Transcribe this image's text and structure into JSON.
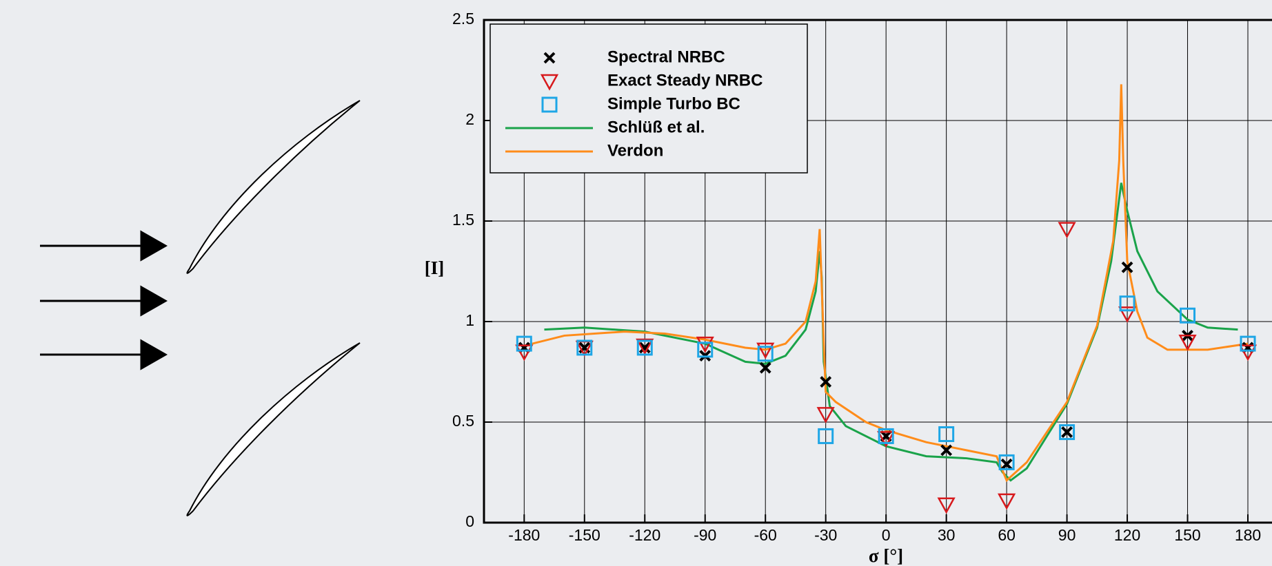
{
  "chart_data": {
    "type": "scatter",
    "xlabel": "σ [°]",
    "ylabel": "[I]",
    "xlim": [
      -200,
      192
    ],
    "ylim": [
      0,
      2.5
    ],
    "xticks": [
      -180,
      -150,
      -120,
      -90,
      -60,
      -30,
      0,
      30,
      60,
      90,
      120,
      150,
      180
    ],
    "yticks": [
      0,
      0.5,
      1,
      1.5,
      2,
      2.5
    ],
    "grid": true,
    "legend": "upper left",
    "series": [
      {
        "name": "Spectral NRBC",
        "color": "#000000",
        "marker": "x",
        "x": [
          -180,
          -150,
          -120,
          -90,
          -60,
          -30,
          0,
          30,
          60,
          90,
          120,
          150,
          180
        ],
        "values": [
          0.87,
          0.87,
          0.87,
          0.83,
          0.77,
          0.7,
          0.43,
          0.36,
          0.29,
          0.45,
          1.27,
          0.93,
          0.87
        ]
      },
      {
        "name": "Exact Steady NRBC",
        "color": "#d7191c",
        "marker": "triangle",
        "x": [
          -180,
          -150,
          -120,
          -90,
          -60,
          -30,
          0,
          30,
          60,
          90,
          120,
          150,
          180
        ],
        "values": [
          0.85,
          0.87,
          0.88,
          0.89,
          0.86,
          0.54,
          0.42,
          0.09,
          0.11,
          1.46,
          1.04,
          0.9,
          0.85
        ]
      },
      {
        "name": "Simple Turbo BC",
        "color": "#1ea6e6",
        "marker": "square",
        "x": [
          -180,
          -150,
          -120,
          -90,
          -60,
          -30,
          0,
          30,
          60,
          90,
          120,
          150,
          180
        ],
        "values": [
          0.89,
          0.87,
          0.87,
          0.86,
          0.84,
          0.43,
          0.43,
          0.44,
          0.3,
          0.45,
          1.09,
          1.03,
          0.89
        ]
      },
      {
        "name": "Schlüß et al.",
        "color": "#1aa34a",
        "marker": "line",
        "x": [
          -170,
          -150,
          -120,
          -90,
          -70,
          -60,
          -50,
          -40,
          -35,
          -33,
          -32,
          -31,
          -28,
          -20,
          0,
          20,
          40,
          55,
          58,
          62,
          70,
          90,
          105,
          112,
          117,
          120,
          125,
          135,
          150,
          160,
          175
        ],
        "values": [
          0.96,
          0.97,
          0.95,
          0.89,
          0.8,
          0.79,
          0.83,
          0.96,
          1.15,
          1.35,
          1.22,
          0.8,
          0.58,
          0.48,
          0.38,
          0.33,
          0.32,
          0.3,
          0.25,
          0.21,
          0.27,
          0.59,
          0.97,
          1.3,
          1.69,
          1.55,
          1.35,
          1.15,
          1.01,
          0.97,
          0.96
        ]
      },
      {
        "name": "Verdon",
        "color": "#ff8c1a",
        "marker": "line",
        "x": [
          -180,
          -160,
          -130,
          -110,
          -90,
          -70,
          -60,
          -50,
          -40,
          -35,
          -33,
          -31,
          -30,
          -25,
          -10,
          0,
          20,
          40,
          55,
          60,
          70,
          90,
          105,
          113,
          116,
          117,
          118,
          120,
          125,
          130,
          140,
          160,
          180
        ],
        "values": [
          0.88,
          0.93,
          0.95,
          0.94,
          0.91,
          0.87,
          0.86,
          0.89,
          1.0,
          1.2,
          1.46,
          0.9,
          0.65,
          0.6,
          0.5,
          0.46,
          0.4,
          0.36,
          0.33,
          0.21,
          0.3,
          0.6,
          0.98,
          1.4,
          1.8,
          2.18,
          1.8,
          1.3,
          1.05,
          0.92,
          0.86,
          0.86,
          0.89
        ]
      }
    ]
  }
}
